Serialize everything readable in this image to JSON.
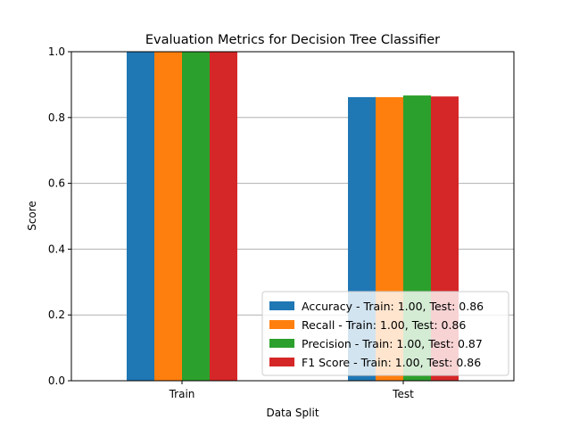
{
  "chart_data": {
    "type": "bar",
    "title": "Evaluation Metrics for Decision Tree Classifier",
    "xlabel": "Data Split",
    "ylabel": "Score",
    "categories": [
      "Train",
      "Test"
    ],
    "ylim": [
      0,
      1.0
    ],
    "yticks": [
      "0.0",
      "0.2",
      "0.4",
      "0.6",
      "0.8",
      "1.0"
    ],
    "grid": "y",
    "legend_position": "lower-right",
    "series": [
      {
        "name": "Accuracy - Train: 1.00, Test: 0.86",
        "values": [
          1.0,
          0.862
        ],
        "color": "#1f77b4"
      },
      {
        "name": "Recall - Train: 1.00, Test: 0.86",
        "values": [
          1.0,
          0.862
        ],
        "color": "#ff7f0e"
      },
      {
        "name": "Precision - Train: 1.00, Test: 0.87",
        "values": [
          1.0,
          0.867
        ],
        "color": "#2ca02c"
      },
      {
        "name": "F1 Score - Train: 1.00, Test: 0.86",
        "values": [
          1.0,
          0.864
        ],
        "color": "#d62728"
      }
    ]
  }
}
